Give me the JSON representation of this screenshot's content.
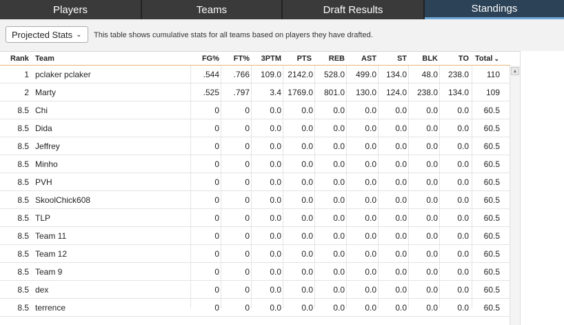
{
  "tabs": [
    {
      "label": "Players",
      "active": false
    },
    {
      "label": "Teams",
      "active": false
    },
    {
      "label": "Draft Results",
      "active": false
    },
    {
      "label": "Standings",
      "active": true
    }
  ],
  "toolbar": {
    "select_value": "Projected Stats",
    "description": "This table shows cumulative stats for all teams based on players they have drafted."
  },
  "columns": [
    "Rank",
    "Team",
    "FG%",
    "FT%",
    "3PTM",
    "PTS",
    "REB",
    "AST",
    "ST",
    "BLK",
    "TO",
    "Total"
  ],
  "sort_icon": "chevron-down-icon",
  "rows": [
    {
      "rank": "1",
      "team": "pclaker pclaker",
      "fg": ".544",
      "ft": ".766",
      "tpm": "109.0",
      "pts": "2142.0",
      "reb": "528.0",
      "ast": "499.0",
      "st": "134.0",
      "blk": "48.0",
      "to": "238.0",
      "total": "110"
    },
    {
      "rank": "2",
      "team": "Marty",
      "fg": ".525",
      "ft": ".797",
      "tpm": "3.4",
      "pts": "1769.0",
      "reb": "801.0",
      "ast": "130.0",
      "st": "124.0",
      "blk": "238.0",
      "to": "134.0",
      "total": "109"
    },
    {
      "rank": "8.5",
      "team": "Chi",
      "fg": "0",
      "ft": "0",
      "tpm": "0.0",
      "pts": "0.0",
      "reb": "0.0",
      "ast": "0.0",
      "st": "0.0",
      "blk": "0.0",
      "to": "0.0",
      "total": "60.5"
    },
    {
      "rank": "8.5",
      "team": "Dida",
      "fg": "0",
      "ft": "0",
      "tpm": "0.0",
      "pts": "0.0",
      "reb": "0.0",
      "ast": "0.0",
      "st": "0.0",
      "blk": "0.0",
      "to": "0.0",
      "total": "60.5"
    },
    {
      "rank": "8.5",
      "team": "Jeffrey",
      "fg": "0",
      "ft": "0",
      "tpm": "0.0",
      "pts": "0.0",
      "reb": "0.0",
      "ast": "0.0",
      "st": "0.0",
      "blk": "0.0",
      "to": "0.0",
      "total": "60.5"
    },
    {
      "rank": "8.5",
      "team": "Minho",
      "fg": "0",
      "ft": "0",
      "tpm": "0.0",
      "pts": "0.0",
      "reb": "0.0",
      "ast": "0.0",
      "st": "0.0",
      "blk": "0.0",
      "to": "0.0",
      "total": "60.5"
    },
    {
      "rank": "8.5",
      "team": "PVH",
      "fg": "0",
      "ft": "0",
      "tpm": "0.0",
      "pts": "0.0",
      "reb": "0.0",
      "ast": "0.0",
      "st": "0.0",
      "blk": "0.0",
      "to": "0.0",
      "total": "60.5"
    },
    {
      "rank": "8.5",
      "team": "SkoolChick608",
      "fg": "0",
      "ft": "0",
      "tpm": "0.0",
      "pts": "0.0",
      "reb": "0.0",
      "ast": "0.0",
      "st": "0.0",
      "blk": "0.0",
      "to": "0.0",
      "total": "60.5"
    },
    {
      "rank": "8.5",
      "team": "TLP",
      "fg": "0",
      "ft": "0",
      "tpm": "0.0",
      "pts": "0.0",
      "reb": "0.0",
      "ast": "0.0",
      "st": "0.0",
      "blk": "0.0",
      "to": "0.0",
      "total": "60.5"
    },
    {
      "rank": "8.5",
      "team": "Team 11",
      "fg": "0",
      "ft": "0",
      "tpm": "0.0",
      "pts": "0.0",
      "reb": "0.0",
      "ast": "0.0",
      "st": "0.0",
      "blk": "0.0",
      "to": "0.0",
      "total": "60.5"
    },
    {
      "rank": "8.5",
      "team": "Team 12",
      "fg": "0",
      "ft": "0",
      "tpm": "0.0",
      "pts": "0.0",
      "reb": "0.0",
      "ast": "0.0",
      "st": "0.0",
      "blk": "0.0",
      "to": "0.0",
      "total": "60.5"
    },
    {
      "rank": "8.5",
      "team": "Team 9",
      "fg": "0",
      "ft": "0",
      "tpm": "0.0",
      "pts": "0.0",
      "reb": "0.0",
      "ast": "0.0",
      "st": "0.0",
      "blk": "0.0",
      "to": "0.0",
      "total": "60.5"
    },
    {
      "rank": "8.5",
      "team": "dex",
      "fg": "0",
      "ft": "0",
      "tpm": "0.0",
      "pts": "0.0",
      "reb": "0.0",
      "ast": "0.0",
      "st": "0.0",
      "blk": "0.0",
      "to": "0.0",
      "total": "60.5"
    },
    {
      "rank": "8.5",
      "team": "terrence",
      "fg": "0",
      "ft": "0",
      "tpm": "0.0",
      "pts": "0.0",
      "reb": "0.0",
      "ast": "0.0",
      "st": "0.0",
      "blk": "0.0",
      "to": "0.0",
      "total": "60.5"
    }
  ],
  "colors": {
    "tab_bg": "#3a3a3a",
    "tab_active": "#2b4257",
    "tab_active_underline": "#6fa9d9",
    "header_rule": "#e6b37a"
  }
}
